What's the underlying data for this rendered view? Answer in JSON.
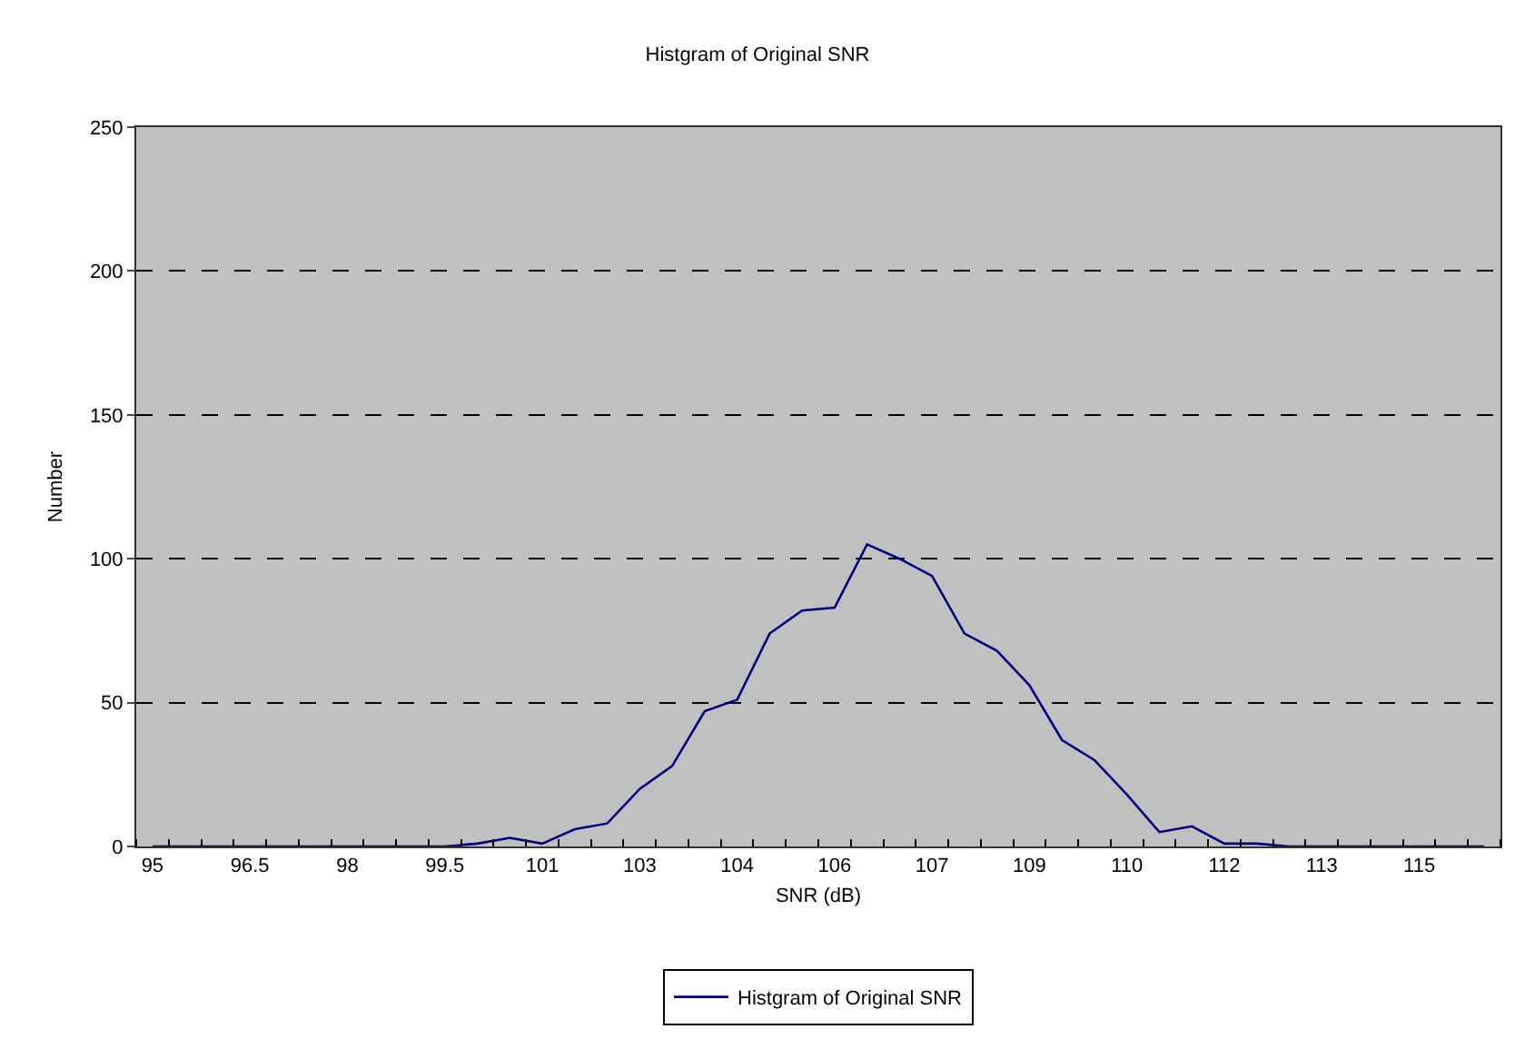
{
  "chart_data": {
    "type": "line",
    "title": "Histgram of Original SNR",
    "xlabel": "SNR (dB)",
    "ylabel": "Number",
    "categories": [
      "95",
      null,
      null,
      "96.5",
      null,
      null,
      "98",
      null,
      null,
      "99.5",
      null,
      null,
      "101",
      null,
      null,
      "103",
      null,
      null,
      "104",
      null,
      null,
      "106",
      null,
      null,
      "107",
      null,
      null,
      "109",
      null,
      null,
      "110",
      null,
      null,
      "112",
      null,
      null,
      "113",
      null,
      null,
      "115",
      null,
      null
    ],
    "series": [
      {
        "name": "Histgram of Original SNR",
        "color": "#000080",
        "values": [
          0,
          0,
          0,
          0,
          0,
          0,
          0,
          0,
          0,
          0,
          1,
          3,
          1,
          6,
          8,
          20,
          28,
          47,
          51,
          74,
          82,
          83,
          105,
          100,
          94,
          74,
          68,
          56,
          37,
          30,
          18,
          5,
          7,
          1,
          1,
          0,
          0,
          0,
          0,
          0,
          0,
          0
        ]
      }
    ],
    "ylim": [
      0,
      250
    ],
    "yticks": [
      0,
      50,
      100,
      150,
      200,
      250
    ],
    "grid": "y",
    "legend": "bottom",
    "marker": "none",
    "line_style": "solid"
  }
}
